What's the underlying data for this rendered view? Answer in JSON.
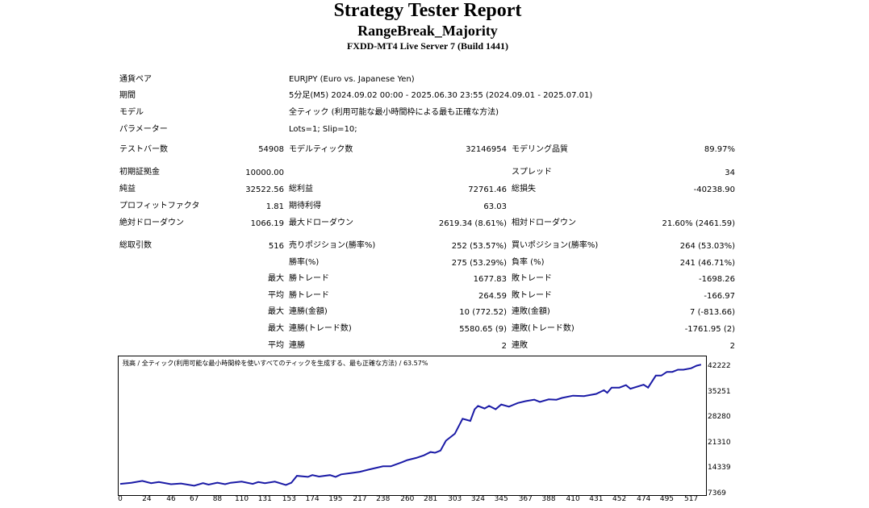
{
  "header": {
    "title": "Strategy Tester Report",
    "ea_name": "RangeBreak_Majority",
    "server": "FXDD-MT4 Live Server 7 (Build 1441)"
  },
  "info": {
    "pair_label": "通貨ペア",
    "pair_value": "EURJPY (Euro vs. Japanese Yen)",
    "period_label": "期間",
    "period_value": "5分足(M5) 2024.09.02 00:00 - 2025.06.30 23:55 (2024.09.01 - 2025.07.01)",
    "model_label": "モデル",
    "model_value": "全ティック (利用可能な最小時間枠による最も正確な方法)",
    "params_label": "パラメーター",
    "params_value": "Lots=1; Slip=10;"
  },
  "stats": {
    "bars_label": "テストバー数",
    "bars_value": "54908",
    "ticks_label": "モデルティック数",
    "ticks_value": "32146954",
    "quality_label": "モデリング品質",
    "quality_value": "89.97%",
    "deposit_label": "初期証拠金",
    "deposit_value": "10000.00",
    "spread_label": "スプレッド",
    "spread_value": "34",
    "net_label": "純益",
    "net_value": "32522.56",
    "gross_profit_label": "総利益",
    "gross_profit_value": "72761.46",
    "gross_loss_label": "総損失",
    "gross_loss_value": "-40238.90",
    "pf_label": "プロフィットファクタ",
    "pf_value": "1.81",
    "expected_label": "期待利得",
    "expected_value": "63.03",
    "abs_dd_label": "絶対ドローダウン",
    "abs_dd_value": "1066.19",
    "max_dd_label": "最大ドローダウン",
    "max_dd_value": "2619.34 (8.61%)",
    "rel_dd_label": "相対ドローダウン",
    "rel_dd_value": "21.60% (2461.59)",
    "trades_label": "総取引数",
    "trades_value": "516",
    "short_label": "売りポジション(勝率%)",
    "short_value": "252 (53.57%)",
    "long_label": "買いポジション(勝率%)",
    "long_value": "264 (53.03%)",
    "winrate_label": "勝率(%)",
    "winrate_value": "275 (53.29%)",
    "lossrate_label": "負率 (%)",
    "lossrate_value": "241 (46.71%)",
    "max_word": "最大",
    "avg_word": "平均",
    "win_trade_label": "勝トレード",
    "max_win_value": "1677.83",
    "loss_trade_label": "敗トレード",
    "max_loss_value": "-1698.26",
    "avg_win_value": "264.59",
    "avg_loss_value": "-166.97",
    "consec_win_amount_label": "連勝(金額)",
    "consec_win_amount_value": "10 (772.52)",
    "consec_loss_amount_label": "連敗(金額)",
    "consec_loss_amount_value": "7 (-813.66)",
    "consec_win_count_label": "連勝(トレード数)",
    "consec_win_count_value": "5580.65 (9)",
    "consec_loss_count_label": "連敗(トレード数)",
    "consec_loss_count_value": "-1761.95 (2)",
    "avg_win_streak_label": "連勝",
    "avg_win_streak_value": "2",
    "avg_loss_streak_label": "連敗",
    "avg_loss_streak_value": "2"
  },
  "chart": {
    "caption": "残高 / 全ティック(利用可能な最小時間枠を使いすべてのティックを生成する、最も正確な方法) / 63.57%",
    "line_color": "#1a1aa6"
  },
  "chart_data": {
    "type": "line",
    "title": "",
    "xlabel": "",
    "ylabel": "",
    "x_ticks": [
      "0",
      "24",
      "46",
      "67",
      "88",
      "110",
      "131",
      "153",
      "174",
      "195",
      "217",
      "238",
      "260",
      "281",
      "303",
      "324",
      "345",
      "367",
      "388",
      "410",
      "431",
      "452",
      "474",
      "495",
      "517"
    ],
    "y_ticks": [
      "42222",
      "35251",
      "28280",
      "21310",
      "14339",
      "7369"
    ],
    "xlim": [
      0,
      529
    ],
    "ylim": [
      7369,
      44400
    ],
    "series": [
      {
        "x": [
          0,
          10,
          20,
          28,
          35,
          46,
          55,
          67,
          75,
          80,
          88,
          95,
          100,
          110,
          120,
          125,
          131,
          140,
          150,
          155,
          160,
          170,
          174,
          180,
          190,
          195,
          200,
          210,
          217,
          225,
          238,
          245,
          255,
          260,
          268,
          275,
          281,
          285,
          290,
          295,
          303,
          310,
          317,
          321,
          324,
          330,
          334,
          340,
          345,
          352,
          360,
          367,
          375,
          380,
          388,
          395,
          400,
          410,
          420,
          431,
          438,
          441,
          445,
          452,
          458,
          462,
          474,
          478,
          485,
          490,
          495,
          500,
          505,
          510,
          517,
          522,
          526
        ],
        "y": [
          10000,
          10300,
          10800,
          10200,
          10500,
          9900,
          10100,
          9500,
          10200,
          9800,
          10300,
          9900,
          10300,
          10600,
          10000,
          10500,
          10200,
          10600,
          9700,
          10300,
          12200,
          11900,
          12400,
          12000,
          12400,
          11900,
          12600,
          13000,
          13300,
          13900,
          14800,
          14800,
          15900,
          16500,
          17100,
          17800,
          18700,
          18500,
          19100,
          21800,
          23700,
          27800,
          27200,
          30400,
          31300,
          30600,
          31300,
          30400,
          31700,
          31100,
          32100,
          32600,
          33000,
          32400,
          33100,
          33000,
          33500,
          34100,
          34000,
          34600,
          35600,
          34900,
          36300,
          36300,
          37000,
          36000,
          37100,
          36300,
          39600,
          39600,
          40600,
          40600,
          41200,
          41200,
          41600,
          42300,
          42600
        ]
      }
    ]
  }
}
